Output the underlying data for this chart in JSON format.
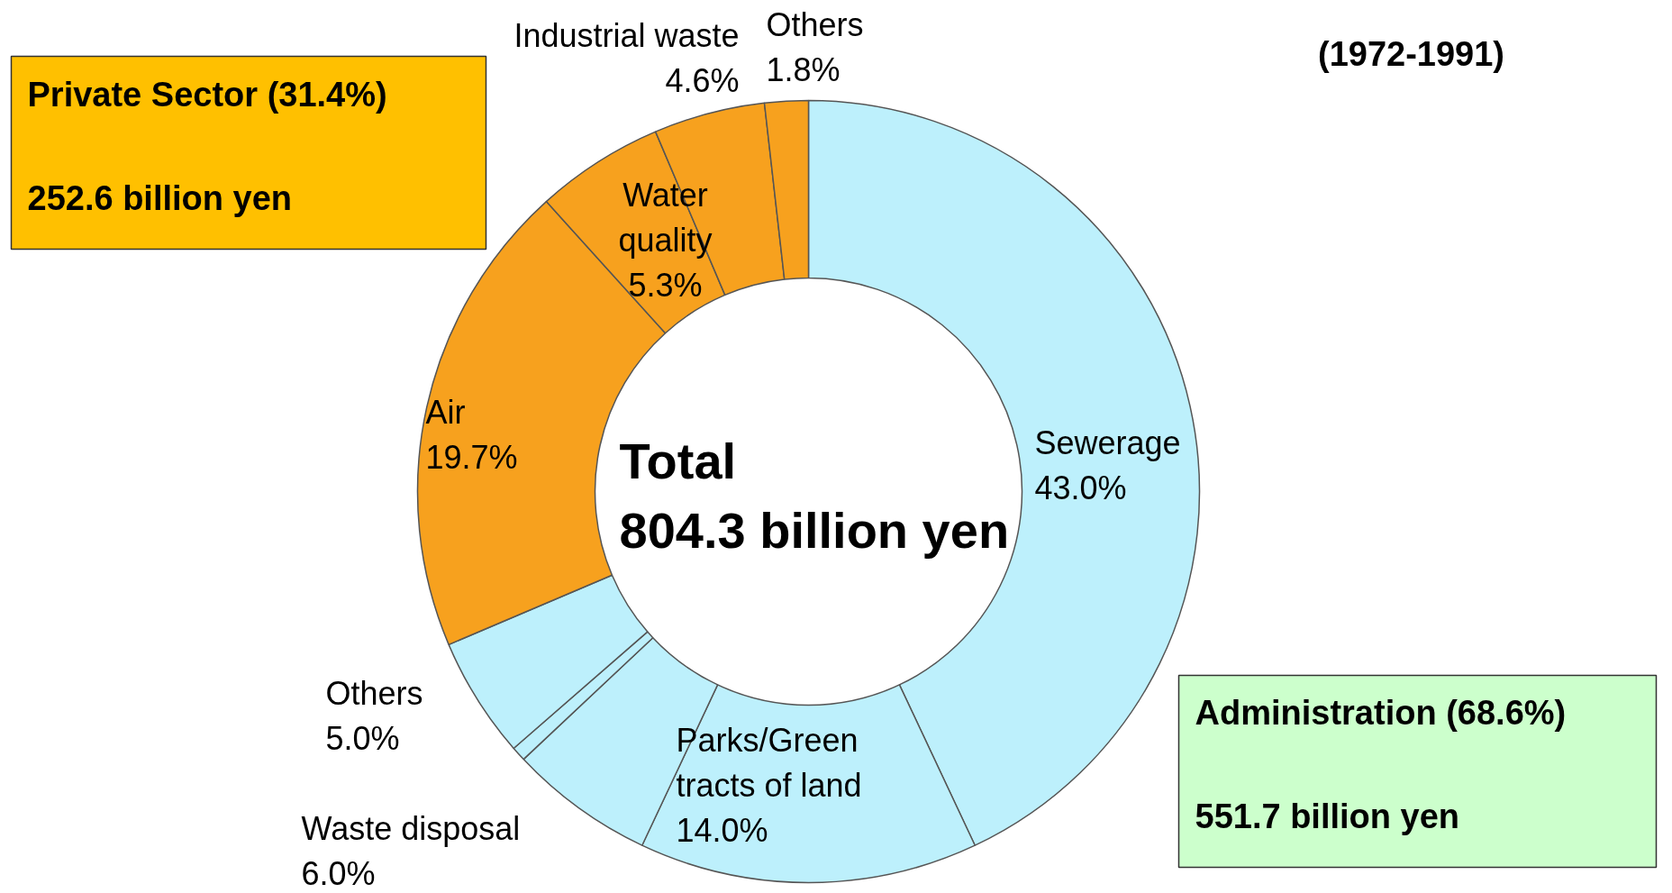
{
  "chart_data": {
    "type": "donut",
    "title": "(1972-1991)",
    "categories": [
      "Sewerage",
      "Parks/Green tracts of land",
      "Waste disposal",
      null,
      "Others",
      "Air",
      "Water quality",
      "Industrial waste",
      "Others"
    ],
    "values": [
      43.0,
      14.0,
      6.0,
      0.6,
      5.0,
      19.7,
      5.3,
      4.6,
      1.8
    ],
    "colors": [
      "#bdf0fc",
      "#bdf0fc",
      "#bdf0fc",
      "#bdf0fc",
      "#bdf0fc",
      "#f7a11e",
      "#f7a11e",
      "#f7a11e",
      "#f7a11e"
    ],
    "value_labels": [
      "43.0%",
      "14.0%",
      "6.0%",
      null,
      "5.0%",
      "19.7%",
      "5.3%",
      "4.6%",
      "1.8%"
    ],
    "annotations": [
      "Total",
      "804.3 billion yen",
      "Private Sector (31.4%)",
      "252.6 billion yen",
      "Administration (68.6%)",
      "551.7 billion yen"
    ]
  }
}
